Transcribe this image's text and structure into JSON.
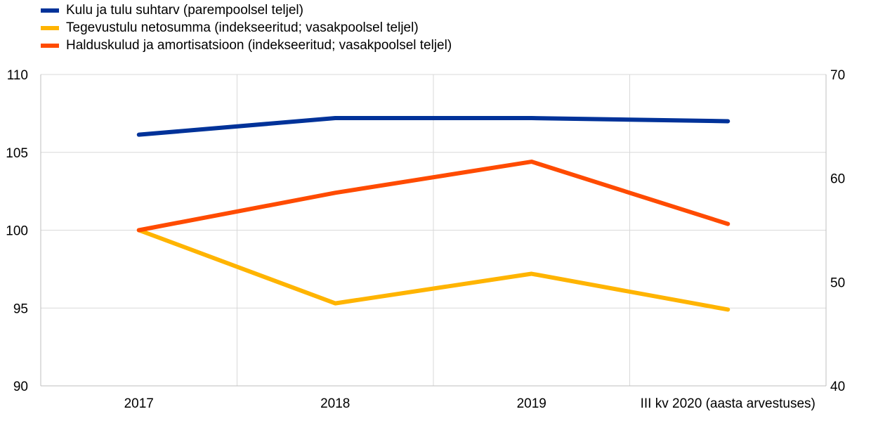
{
  "chart_data": {
    "type": "line",
    "categories": [
      "2017",
      "2018",
      "2019",
      "III kv 2020 (aasta arvestuses)"
    ],
    "series": [
      {
        "name": "Kulu ja tulu suhtarv (parempoolsel teljel)",
        "axis": "right",
        "color": "#003299",
        "values": [
          64.2,
          65.8,
          65.8,
          65.5
        ]
      },
      {
        "name": "Tegevustulu netosumma (indekseeritud; vasakpoolsel teljel)",
        "axis": "left",
        "color": "#FFB400",
        "values": [
          100,
          95.3,
          97.2,
          94.9
        ]
      },
      {
        "name": "Halduskulud ja amortisatsioon (indekseeritud; vasakpoolsel teljel)",
        "axis": "left",
        "color": "#FF4B00",
        "values": [
          100,
          102.4,
          104.4,
          100.4
        ]
      }
    ],
    "y_left": {
      "min": 90,
      "max": 110,
      "ticks": [
        "90",
        "95",
        "100",
        "105",
        "110"
      ]
    },
    "y_right": {
      "min": 40,
      "max": 70,
      "ticks": [
        "40",
        "50",
        "60",
        "70"
      ]
    },
    "grid": true,
    "legend_position": "top-left"
  }
}
